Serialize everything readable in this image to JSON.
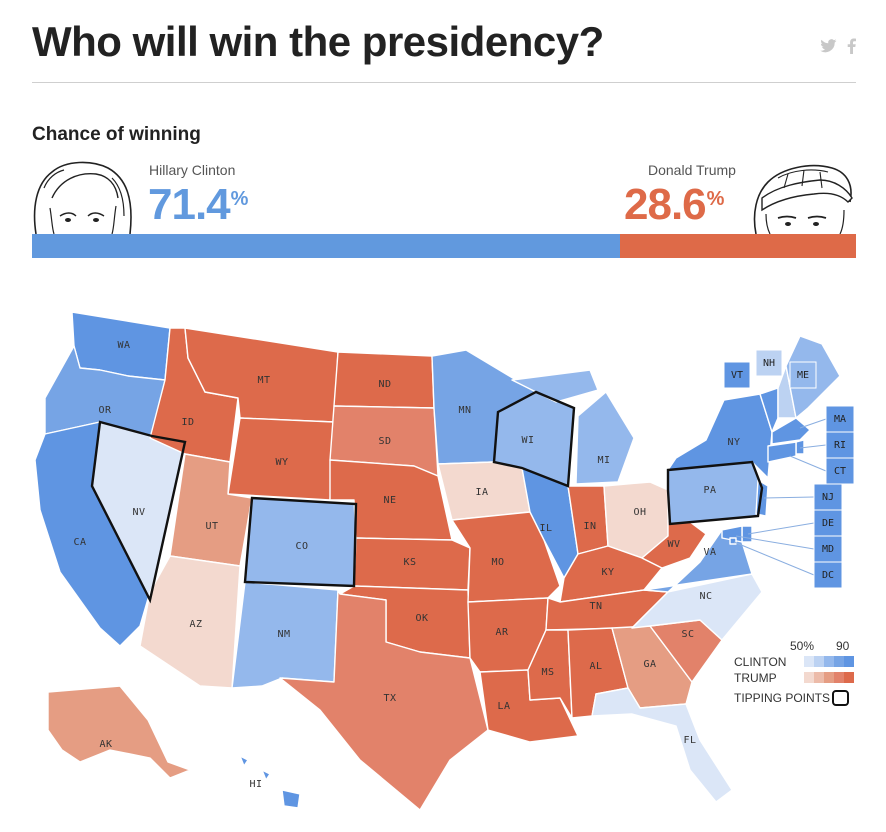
{
  "header": {
    "title": "Who will win the presidency?",
    "social": [
      {
        "name": "twitter-icon",
        "glyph": "✦"
      },
      {
        "name": "facebook-icon",
        "glyph": "f"
      }
    ]
  },
  "chance": {
    "heading": "Chance of winning",
    "candidates": [
      {
        "name": "Hillary Clinton",
        "value": "71.4",
        "unit": "%",
        "color": "#6199de"
      },
      {
        "name": "Donald Trump",
        "value": "28.6",
        "unit": "%",
        "color": "#de6a48"
      }
    ],
    "bar": {
      "clinton_share": 71.4,
      "trump_share": 28.6
    }
  },
  "colors": {
    "clinton_scale": [
      "#dbe6f7",
      "#bcd2f2",
      "#94b8ec",
      "#76a4e5",
      "#5f95e2"
    ],
    "trump_scale": [
      "#f3d9cf",
      "#ecbba9",
      "#e59d83",
      "#e2826a",
      "#dd6a4b"
    ]
  },
  "states": [
    {
      "code": "WA",
      "lean": "clinton",
      "level": 4,
      "tipping": false
    },
    {
      "code": "OR",
      "lean": "clinton",
      "level": 3,
      "tipping": false
    },
    {
      "code": "CA",
      "lean": "clinton",
      "level": 4,
      "tipping": false
    },
    {
      "code": "NV",
      "lean": "clinton",
      "level": 0,
      "tipping": true
    },
    {
      "code": "ID",
      "lean": "trump",
      "level": 4,
      "tipping": false
    },
    {
      "code": "MT",
      "lean": "trump",
      "level": 4,
      "tipping": false
    },
    {
      "code": "WY",
      "lean": "trump",
      "level": 4,
      "tipping": false
    },
    {
      "code": "UT",
      "lean": "trump",
      "level": 2,
      "tipping": false
    },
    {
      "code": "AZ",
      "lean": "trump",
      "level": 0,
      "tipping": false
    },
    {
      "code": "CO",
      "lean": "clinton",
      "level": 2,
      "tipping": true
    },
    {
      "code": "NM",
      "lean": "clinton",
      "level": 2,
      "tipping": false
    },
    {
      "code": "ND",
      "lean": "trump",
      "level": 4,
      "tipping": false
    },
    {
      "code": "SD",
      "lean": "trump",
      "level": 3,
      "tipping": false
    },
    {
      "code": "NE",
      "lean": "trump",
      "level": 4,
      "tipping": false
    },
    {
      "code": "KS",
      "lean": "trump",
      "level": 4,
      "tipping": false
    },
    {
      "code": "OK",
      "lean": "trump",
      "level": 4,
      "tipping": false
    },
    {
      "code": "TX",
      "lean": "trump",
      "level": 3,
      "tipping": false
    },
    {
      "code": "MN",
      "lean": "clinton",
      "level": 3,
      "tipping": false
    },
    {
      "code": "IA",
      "lean": "trump",
      "level": 0,
      "tipping": false
    },
    {
      "code": "MO",
      "lean": "trump",
      "level": 4,
      "tipping": false
    },
    {
      "code": "AR",
      "lean": "trump",
      "level": 4,
      "tipping": false
    },
    {
      "code": "LA",
      "lean": "trump",
      "level": 4,
      "tipping": false
    },
    {
      "code": "WI",
      "lean": "clinton",
      "level": 2,
      "tipping": true
    },
    {
      "code": "IL",
      "lean": "clinton",
      "level": 4,
      "tipping": false
    },
    {
      "code": "MI",
      "lean": "clinton",
      "level": 2,
      "tipping": false
    },
    {
      "code": "IN",
      "lean": "trump",
      "level": 4,
      "tipping": false
    },
    {
      "code": "OH",
      "lean": "trump",
      "level": 0,
      "tipping": false
    },
    {
      "code": "KY",
      "lean": "trump",
      "level": 4,
      "tipping": false
    },
    {
      "code": "TN",
      "lean": "trump",
      "level": 4,
      "tipping": false
    },
    {
      "code": "MS",
      "lean": "trump",
      "level": 4,
      "tipping": false
    },
    {
      "code": "AL",
      "lean": "trump",
      "level": 4,
      "tipping": false
    },
    {
      "code": "GA",
      "lean": "trump",
      "level": 2,
      "tipping": false
    },
    {
      "code": "SC",
      "lean": "trump",
      "level": 3,
      "tipping": false
    },
    {
      "code": "NC",
      "lean": "clinton",
      "level": 0,
      "tipping": false
    },
    {
      "code": "FL",
      "lean": "clinton",
      "level": 0,
      "tipping": false
    },
    {
      "code": "VA",
      "lean": "clinton",
      "level": 3,
      "tipping": false
    },
    {
      "code": "WV",
      "lean": "trump",
      "level": 4,
      "tipping": false
    },
    {
      "code": "PA",
      "lean": "clinton",
      "level": 2,
      "tipping": true
    },
    {
      "code": "NY",
      "lean": "clinton",
      "level": 4,
      "tipping": false
    },
    {
      "code": "VT",
      "lean": "clinton",
      "level": 4,
      "tipping": false
    },
    {
      "code": "NH",
      "lean": "clinton",
      "level": 1,
      "tipping": false
    },
    {
      "code": "ME",
      "lean": "clinton",
      "level": 2,
      "tipping": false
    },
    {
      "code": "MA",
      "lean": "clinton",
      "level": 4,
      "tipping": false
    },
    {
      "code": "RI",
      "lean": "clinton",
      "level": 4,
      "tipping": false
    },
    {
      "code": "CT",
      "lean": "clinton",
      "level": 4,
      "tipping": false
    },
    {
      "code": "NJ",
      "lean": "clinton",
      "level": 4,
      "tipping": false
    },
    {
      "code": "DE",
      "lean": "clinton",
      "level": 4,
      "tipping": false
    },
    {
      "code": "MD",
      "lean": "clinton",
      "level": 4,
      "tipping": false
    },
    {
      "code": "DC",
      "lean": "clinton",
      "level": 4,
      "tipping": false
    },
    {
      "code": "AK",
      "lean": "trump",
      "level": 2,
      "tipping": false
    },
    {
      "code": "HI",
      "lean": "clinton",
      "level": 4,
      "tipping": false
    }
  ],
  "legend": {
    "scale_labels": [
      "50%",
      "90"
    ],
    "rows": [
      "CLINTON",
      "TRUMP"
    ],
    "tipping_label": "TIPPING POINTS"
  }
}
